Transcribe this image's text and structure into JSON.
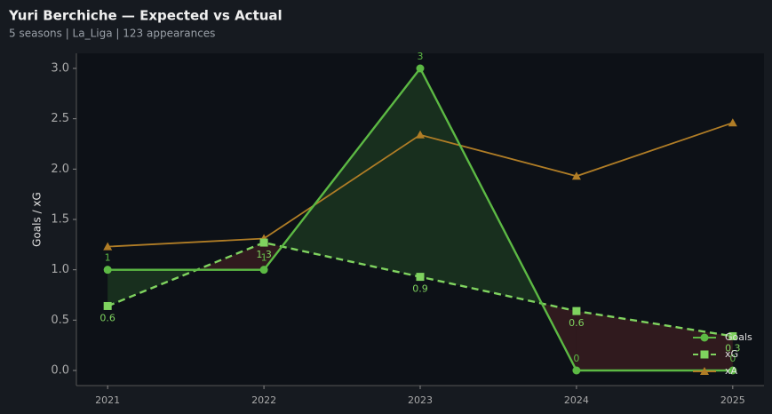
{
  "header": {
    "title": "Yuri Berchiche — Expected vs Actual",
    "subtitle": "5 seasons | La_Liga | 123 appearances"
  },
  "chart_data": {
    "type": "line",
    "y_label": "Goals / xG",
    "x": [
      2021,
      2022,
      2023,
      2024,
      2025
    ],
    "xlim": [
      2020.8,
      2025.2
    ],
    "xticks": [
      2021,
      2022,
      2023,
      2024,
      2025
    ],
    "ylim": [
      -0.15,
      3.15
    ],
    "yticks": [
      {
        "value": 0,
        "label": "0.0"
      },
      {
        "value": 0.5,
        "label": "0.5"
      },
      {
        "value": 1,
        "label": "1.0"
      },
      {
        "value": 1.5,
        "label": "1.5"
      },
      {
        "value": 2,
        "label": "2.0"
      },
      {
        "value": 2.5,
        "label": "2.5"
      },
      {
        "value": 3,
        "label": "3.0"
      }
    ],
    "legend": "lower right",
    "series": [
      {
        "name": "Goals",
        "color": "#5cb944",
        "marker": "circle",
        "dashed": false,
        "values": [
          1,
          1,
          3,
          0,
          0
        ]
      },
      {
        "name": "xG",
        "color": "#7fd35f",
        "marker": "square",
        "dashed": true,
        "values": [
          0.64,
          1.27,
          0.93,
          0.59,
          0.34
        ],
        "value_labels": [
          "0.6",
          "1.3",
          "0.9",
          "0.6",
          "0.3"
        ]
      },
      {
        "name": "xA",
        "color": "#b07d26",
        "marker": "triangle",
        "dashed": false,
        "values": [
          1.23,
          1.31,
          2.34,
          1.93,
          2.46
        ]
      }
    ]
  }
}
